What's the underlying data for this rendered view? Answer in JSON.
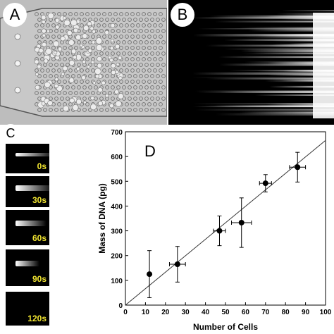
{
  "panels": {
    "a": {
      "letter": "A"
    },
    "b": {
      "letter": "B"
    },
    "c": {
      "letter": "C",
      "frames": [
        "0s",
        "30s",
        "60s",
        "90s",
        "120s"
      ]
    },
    "d": {
      "letter": "D"
    }
  },
  "colors": {
    "time_label": "#f0e430",
    "stretch": "#ffffff",
    "background_dark": "#000000"
  },
  "chart_data": {
    "type": "scatter",
    "xlabel": "Number of Cells",
    "ylabel": "Mass of DNA (pg)",
    "xlim": [
      0,
      100
    ],
    "ylim": [
      0,
      700
    ],
    "xticks": [
      0,
      10,
      20,
      30,
      40,
      50,
      60,
      70,
      80,
      90,
      100
    ],
    "yticks": [
      0,
      100,
      200,
      300,
      400,
      500,
      600,
      700
    ],
    "grid": false,
    "points": [
      {
        "x": 12,
        "y": 125,
        "xerr": 0,
        "yerr": 95
      },
      {
        "x": 26,
        "y": 165,
        "xerr": 4,
        "yerr": 72
      },
      {
        "x": 47,
        "y": 300,
        "xerr": 3,
        "yerr": 60
      },
      {
        "x": 58,
        "y": 333,
        "xerr": 5,
        "yerr": 100
      },
      {
        "x": 70,
        "y": 492,
        "xerr": 3,
        "yerr": 35
      },
      {
        "x": 86,
        "y": 557,
        "xerr": 4,
        "yerr": 60
      }
    ],
    "fit_line": {
      "x": [
        0,
        100
      ],
      "y": [
        0,
        665
      ]
    }
  }
}
